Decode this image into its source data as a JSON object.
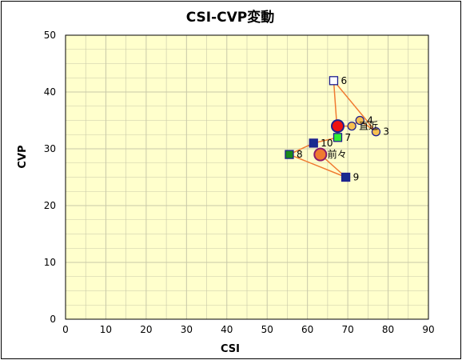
{
  "chart_data": {
    "type": "scatter",
    "title": "CSI-CVP変動",
    "xlabel": "CSI",
    "ylabel": "CVP",
    "xlim": [
      0,
      90
    ],
    "ylim": [
      0,
      50
    ],
    "xticks": [
      "0",
      "10",
      "20",
      "30",
      "40",
      "50",
      "60",
      "70",
      "80",
      "90"
    ],
    "yticks": [
      "0",
      "10",
      "20",
      "30",
      "40",
      "50"
    ],
    "grid": true,
    "colors": {
      "plot_background": "#ffffcc",
      "grid": "#c8c8a8",
      "path_line": "#f07a30"
    },
    "points": [
      {
        "label": "前々",
        "x": 63.2,
        "y": 29.0,
        "marker": "circle-large",
        "fill": "#f07a30",
        "stroke": "#8b1a6a"
      },
      {
        "label": "",
        "x": 67.5,
        "y": 34.0,
        "marker": "circle-large",
        "fill": "#ee1111",
        "stroke": "#1f1f8f"
      },
      {
        "label": "直近",
        "x": 71.0,
        "y": 34.0,
        "marker": "circle",
        "fill": "#f7c050",
        "stroke": "#1f1f8f"
      },
      {
        "label": "3",
        "x": 77.0,
        "y": 33.0,
        "marker": "circle",
        "fill": "#f7c050",
        "stroke": "#1f1f8f"
      },
      {
        "label": "4",
        "x": 73.0,
        "y": 35.0,
        "marker": "circle",
        "fill": "#f7c050",
        "stroke": "#1f1f8f"
      },
      {
        "label": "6",
        "x": 66.5,
        "y": 42.0,
        "marker": "square",
        "fill": "#ffffff",
        "stroke": "#1f1f8f"
      },
      {
        "label": "7",
        "x": 67.5,
        "y": 32.0,
        "marker": "square",
        "fill": "#33ee33",
        "stroke": "#1f1f8f"
      },
      {
        "label": "8",
        "x": 55.5,
        "y": 29.0,
        "marker": "square",
        "fill": "#1a8a1a",
        "stroke": "#1f1f8f"
      },
      {
        "label": "9",
        "x": 69.5,
        "y": 25.0,
        "marker": "square",
        "fill": "#1a2a8f",
        "stroke": "#1f1f8f"
      },
      {
        "label": "10",
        "x": 61.5,
        "y": 31.0,
        "marker": "square",
        "fill": "#1a2a8f",
        "stroke": "#1f1f8f"
      }
    ],
    "path": [
      [
        63.2,
        29.0
      ],
      [
        69.5,
        25.0
      ],
      [
        55.5,
        29.0
      ],
      [
        61.5,
        31.0
      ],
      [
        67.5,
        32.0
      ],
      [
        66.5,
        42.0
      ],
      [
        77.0,
        33.0
      ],
      [
        73.0,
        35.0
      ],
      [
        71.0,
        34.0
      ],
      [
        67.5,
        34.0
      ]
    ]
  }
}
